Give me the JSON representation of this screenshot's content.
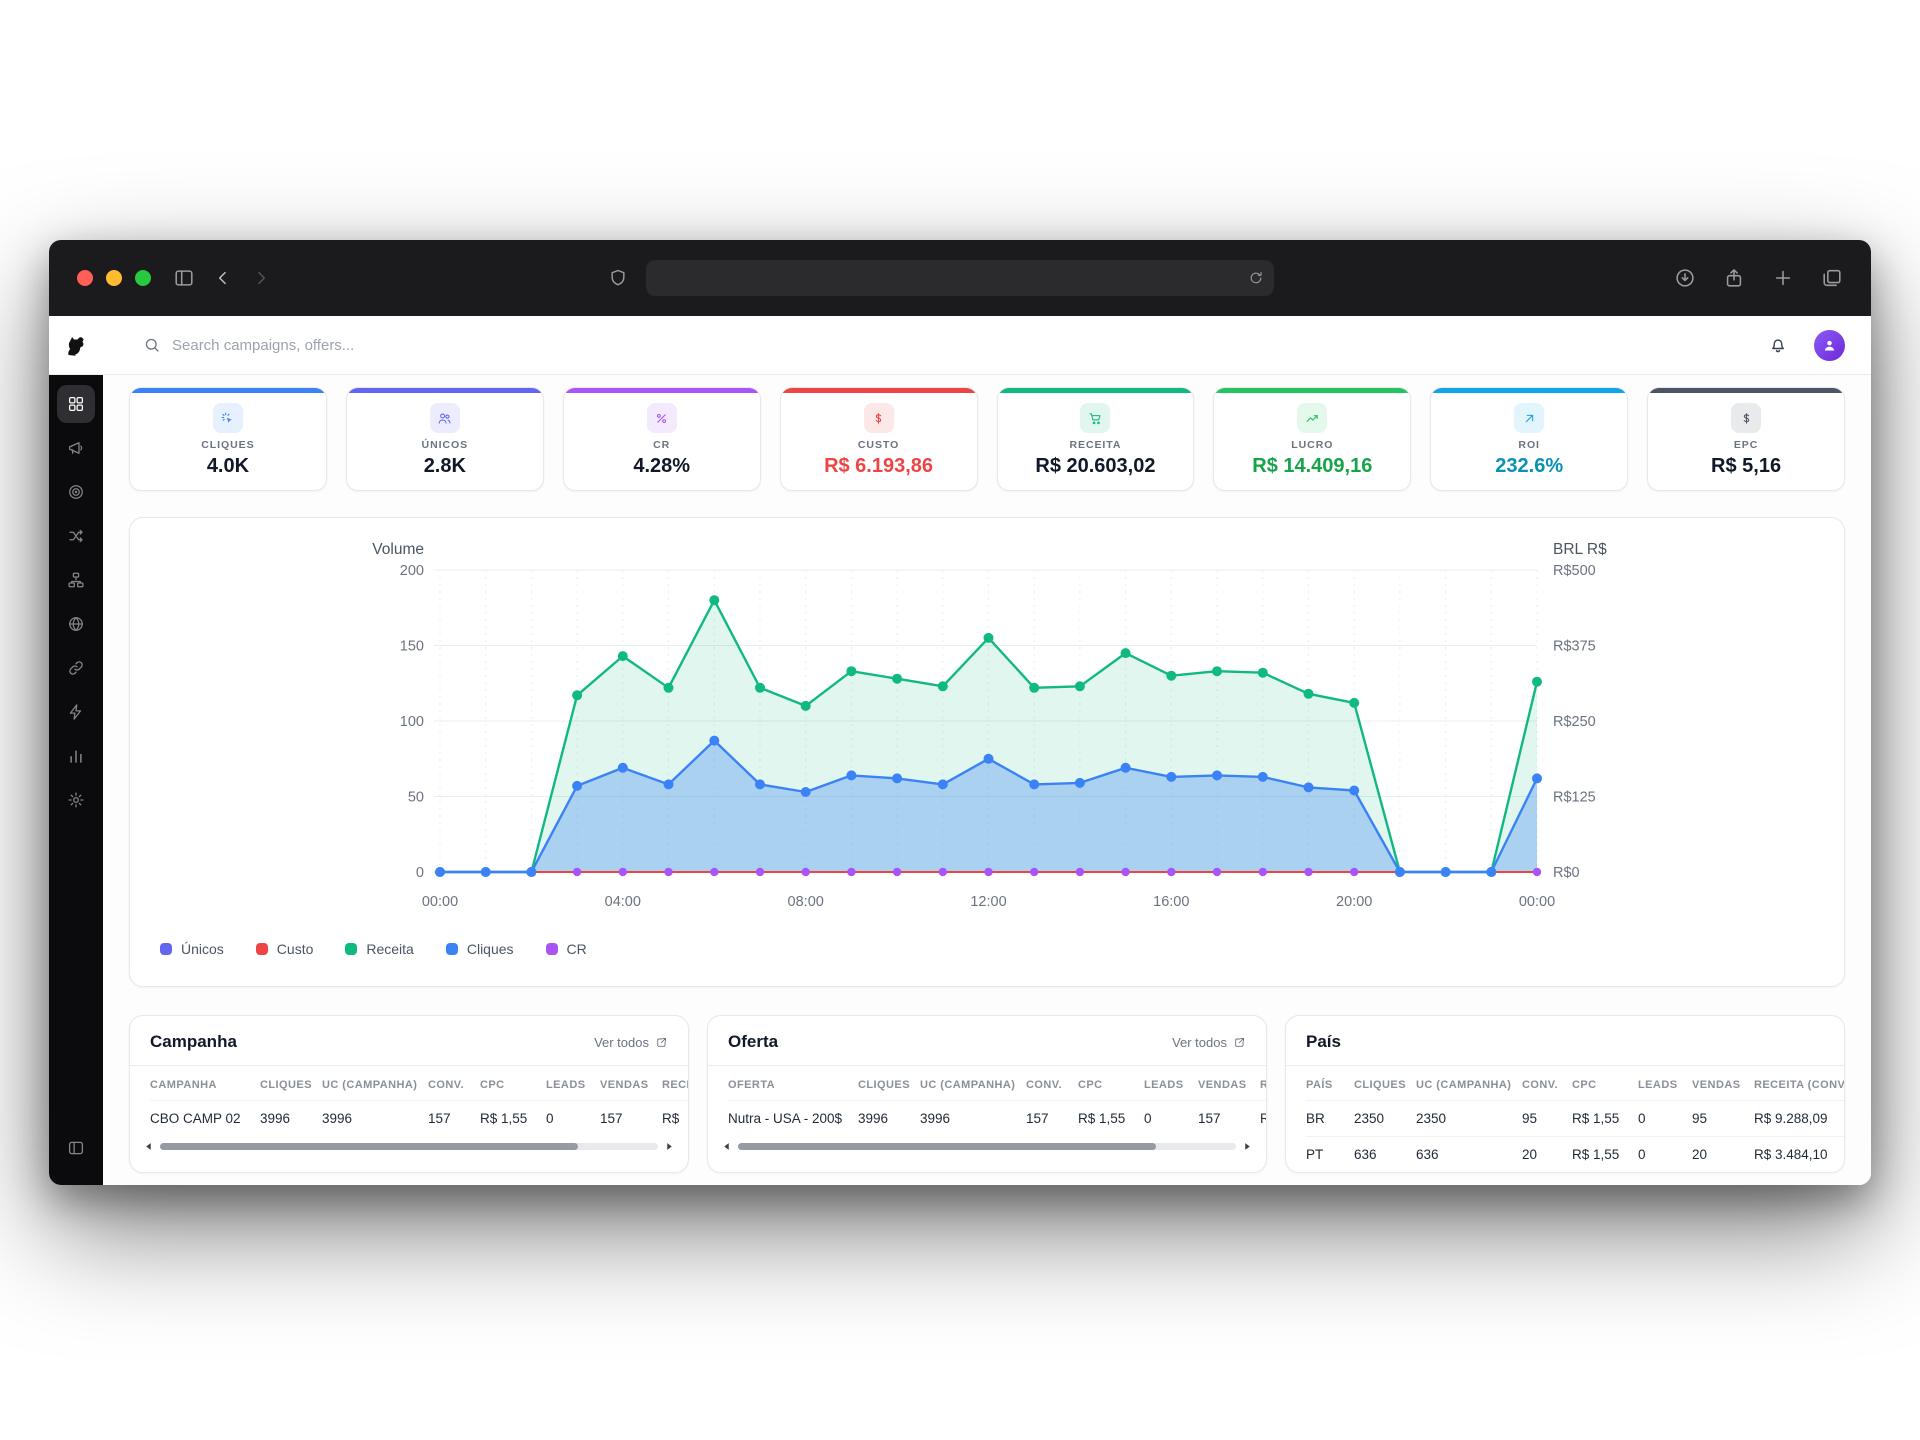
{
  "browser": {
    "url_text": ""
  },
  "topbar": {
    "search_placeholder": "Search campaigns, offers..."
  },
  "sidebar": {
    "items": [
      {
        "name": "dashboard",
        "icon": "grid-icon",
        "active": true
      },
      {
        "name": "campaigns",
        "icon": "megaphone-icon",
        "active": false
      },
      {
        "name": "offers",
        "icon": "target-icon",
        "active": false
      },
      {
        "name": "split-tests",
        "icon": "split-icon",
        "active": false
      },
      {
        "name": "flows",
        "icon": "sitemap-icon",
        "active": false
      },
      {
        "name": "domains",
        "icon": "globe-icon",
        "active": false
      },
      {
        "name": "links",
        "icon": "link-icon",
        "active": false
      },
      {
        "name": "automations",
        "icon": "zap-icon",
        "active": false
      },
      {
        "name": "reports",
        "icon": "bar-chart-icon",
        "active": false
      },
      {
        "name": "settings",
        "icon": "gear-icon",
        "active": false
      }
    ]
  },
  "stats": [
    {
      "label": "CLIQUES",
      "value": "4.0K",
      "accent": "#3b82f6",
      "icon": "click-icon",
      "value_color": "#111827"
    },
    {
      "label": "ÚNICOS",
      "value": "2.8K",
      "accent": "#6366f1",
      "icon": "users-icon",
      "value_color": "#111827"
    },
    {
      "label": "CR",
      "value": "4.28%",
      "accent": "#a855f7",
      "icon": "percent-icon",
      "value_color": "#111827"
    },
    {
      "label": "CUSTO",
      "value": "R$ 6.193,86",
      "accent": "#ef4444",
      "icon": "dollar-icon",
      "value_color": "#ef4444"
    },
    {
      "label": "RECEITA",
      "value": "R$ 20.603,02",
      "accent": "#10b981",
      "icon": "cart-icon",
      "value_color": "#111827"
    },
    {
      "label": "LUCRO",
      "value": "R$ 14.409,16",
      "accent": "#22c55e",
      "icon": "trend-up-icon",
      "value_color": "#16a34a"
    },
    {
      "label": "ROI",
      "value": "232.6%",
      "accent": "#0ea5e9",
      "icon": "arrow-up-right-icon",
      "value_color": "#0891b2"
    },
    {
      "label": "EPC",
      "value": "R$ 5,16",
      "accent": "#4b5563",
      "icon": "dollar-icon",
      "value_color": "#111827"
    }
  ],
  "chart_data": {
    "type": "area",
    "x": [
      "00:00",
      "01:00",
      "02:00",
      "03:00",
      "04:00",
      "05:00",
      "06:00",
      "07:00",
      "08:00",
      "09:00",
      "10:00",
      "11:00",
      "12:00",
      "13:00",
      "14:00",
      "15:00",
      "16:00",
      "17:00",
      "18:00",
      "19:00",
      "20:00",
      "21:00",
      "22:00",
      "23:00",
      "00:00"
    ],
    "x_tick_every": 4,
    "left_axis": {
      "title": "Volume",
      "ticks": [
        0,
        50,
        100,
        150,
        200
      ],
      "max": 200
    },
    "right_axis": {
      "title": "BRL R$",
      "tick_labels": [
        "R$0",
        "R$125",
        "R$250",
        "R$375",
        "R$500"
      ]
    },
    "series": [
      {
        "name": "Únicos",
        "color": "#6366f1",
        "kind": "line",
        "values": [
          0,
          0,
          0,
          0,
          0,
          0,
          0,
          0,
          0,
          0,
          0,
          0,
          0,
          0,
          0,
          0,
          0,
          0,
          0,
          0,
          0,
          0,
          0,
          0,
          0
        ]
      },
      {
        "name": "Custo",
        "color": "#ef4444",
        "kind": "line",
        "values": [
          0,
          0,
          0,
          0,
          0,
          0,
          0,
          0,
          0,
          0,
          0,
          0,
          0,
          0,
          0,
          0,
          0,
          0,
          0,
          0,
          0,
          0,
          0,
          0,
          0
        ]
      },
      {
        "name": "Receita",
        "color": "#10b981",
        "kind": "area",
        "fill_opacity": 0.13,
        "values": [
          0,
          0,
          0,
          117,
          143,
          122,
          180,
          122,
          110,
          133,
          128,
          123,
          155,
          122,
          123,
          145,
          130,
          133,
          132,
          118,
          112,
          0,
          0,
          0,
          126
        ]
      },
      {
        "name": "Cliques",
        "color": "#3b82f6",
        "kind": "area",
        "fill_opacity": 0.32,
        "values": [
          0,
          0,
          0,
          57,
          69,
          58,
          87,
          58,
          53,
          64,
          62,
          58,
          75,
          58,
          59,
          69,
          63,
          64,
          63,
          56,
          54,
          0,
          0,
          0,
          62
        ]
      },
      {
        "name": "CR",
        "color": "#a855f7",
        "kind": "dots",
        "values": [
          0,
          0,
          0,
          0,
          0,
          0,
          0,
          0,
          0,
          0,
          0,
          0,
          0,
          0,
          0,
          0,
          0,
          0,
          0,
          0,
          0,
          0,
          0,
          0,
          0
        ]
      }
    ],
    "legend": [
      "Únicos",
      "Custo",
      "Receita",
      "Cliques",
      "CR"
    ]
  },
  "tables": {
    "campanha": {
      "title": "Campanha",
      "link_label": "Ver todos",
      "columns": [
        "CAMPANHA",
        "CLIQUES",
        "UC (CAMPANHA)",
        "CONV.",
        "CPC",
        "LEADS",
        "VENDAS",
        "RECEITA"
      ],
      "rows": [
        [
          "CBO CAMP 02",
          "3996",
          "3996",
          "157",
          "R$ 1,55",
          "0",
          "157",
          "R$"
        ]
      ],
      "scrollbar": true
    },
    "oferta": {
      "title": "Oferta",
      "link_label": "Ver todos",
      "columns": [
        "OFERTA",
        "CLIQUES",
        "UC (CAMPANHA)",
        "CONV.",
        "CPC",
        "LEADS",
        "VENDAS",
        "RECEITA"
      ],
      "rows": [
        [
          "Nutra - USA - 200$",
          "3996",
          "3996",
          "157",
          "R$ 1,55",
          "0",
          "157",
          "R$"
        ]
      ],
      "scrollbar": true
    },
    "pais": {
      "title": "País",
      "link_label": null,
      "columns": [
        "PAÍS",
        "CLIQUES",
        "UC (CAMPANHA)",
        "CONV.",
        "CPC",
        "LEADS",
        "VENDAS",
        "RECEITA (CONV.)"
      ],
      "rows": [
        [
          "BR",
          "2350",
          "2350",
          "95",
          "R$ 1,55",
          "0",
          "95",
          "R$ 9.288,09"
        ],
        [
          "PT",
          "636",
          "636",
          "20",
          "R$ 1,55",
          "0",
          "20",
          "R$ 3.484,10"
        ]
      ],
      "scrollbar": false
    }
  }
}
